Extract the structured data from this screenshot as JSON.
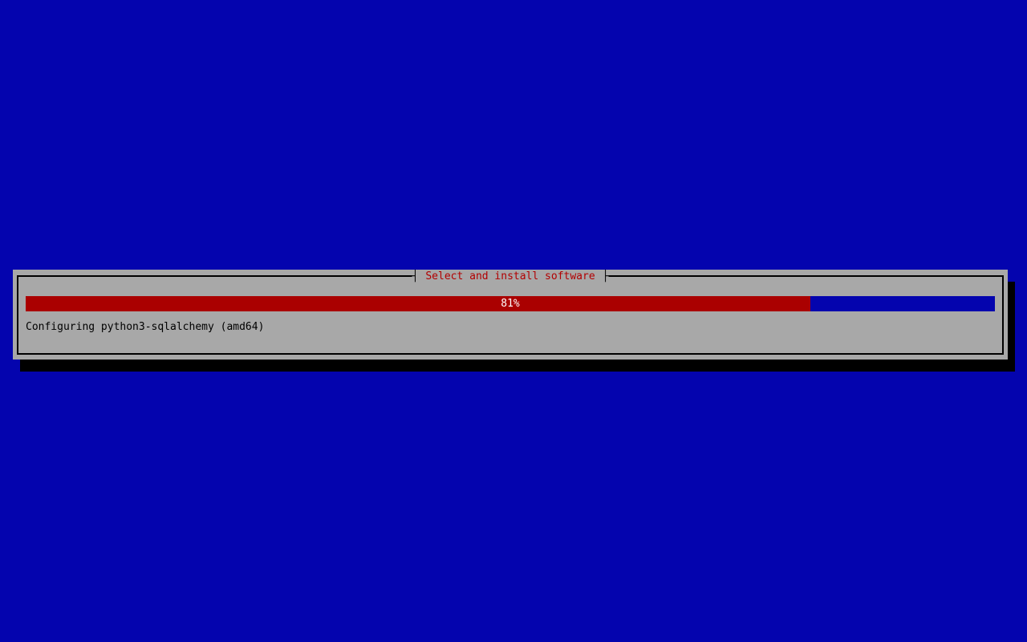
{
  "window": {
    "title": "Select and install software",
    "title_tick_left": "┤",
    "title_tick_right": "├"
  },
  "progress": {
    "percent": 81,
    "label": "81%",
    "status": "Configuring python3-sqlalchemy (amd64)"
  },
  "colors": {
    "background": "#0404AE",
    "dialog_gray": "#A8A8A8",
    "border_black": "#000000",
    "title_red": "#B20000",
    "bar_red": "#AA0000",
    "bar_blue": "#0404AE",
    "status_black": "#000000",
    "percent_white": "#FFFFFF"
  }
}
